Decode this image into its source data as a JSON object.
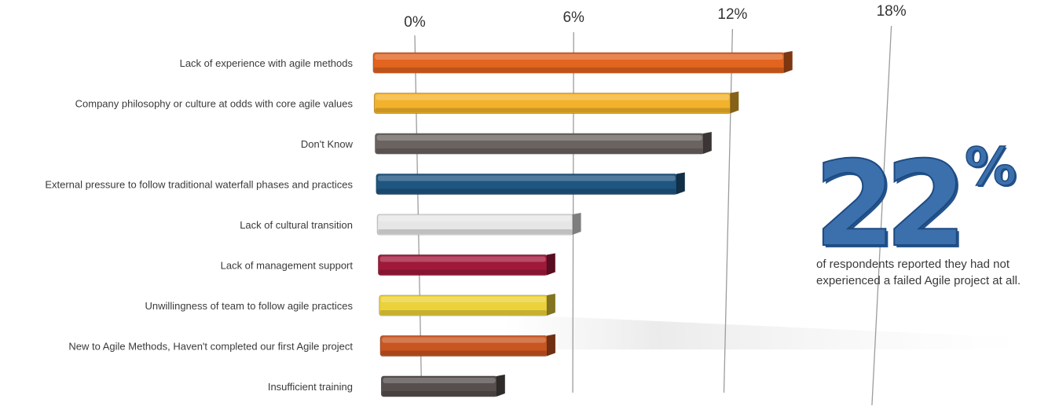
{
  "chart_data": {
    "type": "bar",
    "orientation": "horizontal",
    "categories": [
      "Lack of experience with agile methods",
      "Company philosophy or culture at odds with core agile values",
      "Don't Know",
      "External pressure to follow traditional waterfall phases and practices",
      "Lack of cultural transition",
      "Lack of management support",
      "Unwillingness of team to follow agile practices",
      "New to Agile Methods, Haven't completed our first Agile project",
      "Insufficient training"
    ],
    "values": [
      14,
      12,
      11,
      10,
      6,
      5,
      5,
      5,
      3
    ],
    "value_unit": "%",
    "colors": [
      "#e2641f",
      "#f2b22c",
      "#6b6360",
      "#1f5680",
      "#e6e6e6",
      "#a0193a",
      "#ecd23a",
      "#c95520",
      "#564f4d"
    ],
    "xlim": [
      0,
      18
    ],
    "xticks": [
      "0%",
      "6%",
      "12%",
      "18%"
    ],
    "grid": true,
    "title": "",
    "xlabel": "",
    "ylabel": ""
  },
  "callout": {
    "number": "22",
    "percent_sign": "%",
    "caption": "of respondents reported they had not experienced a failed Agile project at all.",
    "color": "#3c70ad"
  }
}
